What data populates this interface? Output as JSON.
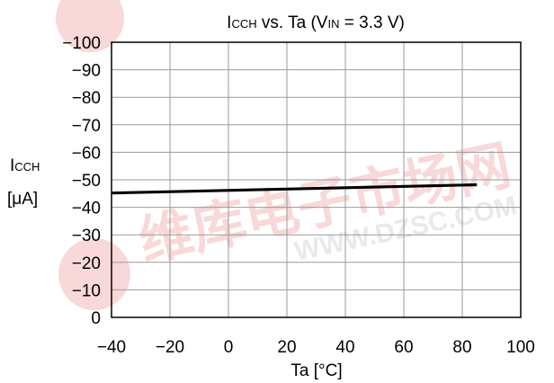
{
  "watermark": {
    "cjk_text": "维库电子市场网",
    "url_text": "WWW.DZSC.COM",
    "color": "#f2b8b8",
    "url_color": "#e3e3e3"
  },
  "chart_data": {
    "type": "line",
    "title": {
      "main": "I",
      "main_sub": "CCH",
      "middle": " vs. Ta (V",
      "vin_sub": "IN",
      "tail": " = 3.3 V)"
    },
    "ylabel": {
      "main": "I",
      "sub": "CCH",
      "unit": "[μA]"
    },
    "xlabel": "Ta [°C]",
    "xlim": [
      -40,
      100
    ],
    "ylim": [
      0,
      -100
    ],
    "x_ticks": [
      -40,
      -20,
      0,
      20,
      40,
      60,
      80,
      100
    ],
    "x_tick_labels": [
      "−40",
      "−20",
      "0",
      "20",
      "40",
      "60",
      "80",
      "100"
    ],
    "y_ticks": [
      -100,
      -90,
      -80,
      -70,
      -60,
      -50,
      -40,
      -30,
      -20,
      -10,
      0
    ],
    "y_tick_labels": [
      "−100",
      "−90",
      "−80",
      "−70",
      "−60",
      "−50",
      "−40",
      "−30",
      "−20",
      "−10",
      "0"
    ],
    "grid": true,
    "series": [
      {
        "x": [
          -40,
          85
        ],
        "y": [
          -45.2,
          -48.2
        ],
        "color": "#000000"
      }
    ]
  }
}
